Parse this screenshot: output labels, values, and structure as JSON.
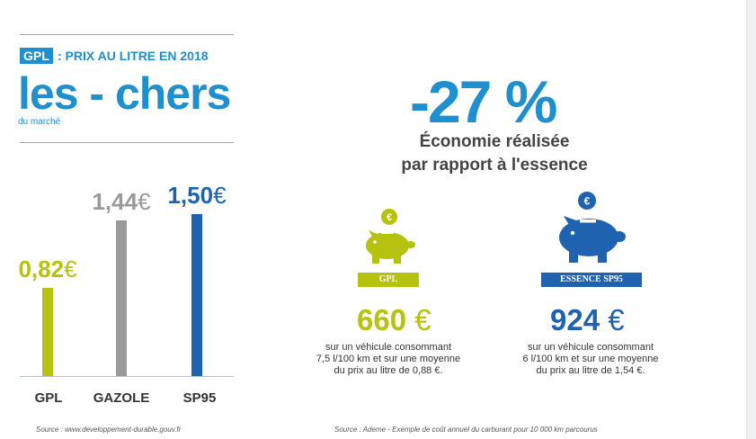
{
  "header": {
    "tag": "GPL",
    "subtitle": ": PRIX AU LITRE EN 2018",
    "big_title": "les - chers",
    "small_title": "du marché"
  },
  "colors": {
    "blue": "#1f8fd0",
    "green": "#b5c20f",
    "grey": "#9a9a9a",
    "dark_blue": "#1f63b0"
  },
  "chart_data": {
    "type": "bar",
    "categories": [
      "GPL",
      "GAZOLE",
      "SP95"
    ],
    "values": [
      0.82,
      1.44,
      1.5
    ],
    "value_labels": [
      "0,82",
      "1,44",
      "1,50"
    ],
    "currency": "€",
    "colors": [
      "#b5c20f",
      "#9a9a9a",
      "#1f63b0"
    ]
  },
  "source_left": "Source : www.developpement-durable.gouv.fr",
  "percent": "-27 %",
  "economy_line1": "Économie réalisée",
  "economy_line2": "par rapport à l'essence",
  "cards": [
    {
      "label": "GPL",
      "amount": "660",
      "currency": "€",
      "desc1": "sur un véhicule consommant",
      "desc2": "7,5 l/100 km et sur une moyenne",
      "desc3": "du prix au litre de 0,88 €.",
      "icon": "piggy-bank-icon",
      "color": "#b5c20f"
    },
    {
      "label": "ESSENCE SP95",
      "amount": "924",
      "currency": "€",
      "desc1": "sur un véhicule consommant",
      "desc2": "6 l/100 km et sur une moyenne",
      "desc3": "du prix au litre de 1,54 €.",
      "icon": "piggy-bank-icon",
      "color": "#1f63b0"
    }
  ],
  "source_right": "Source : Ademe - Exemple de coût annuel du carburant pour 10 000 km parcourus"
}
